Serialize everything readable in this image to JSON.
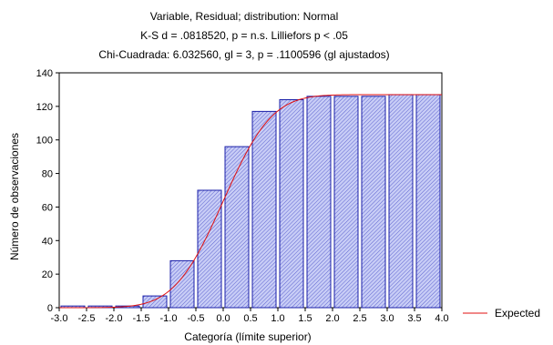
{
  "chart_data": {
    "type": "bar",
    "title": [
      "Variable, Residual; distribution: Normal",
      "K-S d = .0818520, p = n.s. Lilliefors p < .05",
      "Chi-Cuadrada: 6.032560, gl = 3, p = .1100596 (gl ajustados)"
    ],
    "xlabel": "Categoría (límite superior)",
    "ylabel": "Número de observaciones",
    "x_ticks": [
      "-3.0",
      "-2.5",
      "-2.0",
      "-1.5",
      "-1.0",
      "-0.5",
      "0.0",
      "0.5",
      "1.0",
      "1.5",
      "2.0",
      "2.5",
      "3.0",
      "3.5",
      "4.0"
    ],
    "x_tick_values": [
      -3.0,
      -2.5,
      -2.0,
      -1.5,
      -1.0,
      -0.5,
      0.0,
      0.5,
      1.0,
      1.5,
      2.0,
      2.5,
      3.0,
      3.5,
      4.0
    ],
    "y_ticks": [
      "0",
      "20",
      "40",
      "60",
      "80",
      "100",
      "120",
      "140"
    ],
    "xlim": [
      -3.0,
      4.0
    ],
    "ylim": [
      0,
      140
    ],
    "grid": false,
    "bar_upper_limits": [
      -2.5,
      -2.0,
      -1.5,
      -1.0,
      -0.5,
      0.0,
      0.5,
      1.0,
      1.5,
      2.0,
      2.5,
      3.0,
      3.5,
      4.0
    ],
    "bar_width": 0.5,
    "values": [
      1,
      1,
      1,
      7,
      28,
      70,
      96,
      117,
      124,
      126,
      126,
      126,
      127,
      127
    ],
    "expected_curve": {
      "name": "Expected",
      "distribution": "normal-cdf",
      "mean": 0.0,
      "sd": 0.7,
      "total": 127
    },
    "legend_placement": "right",
    "colors": {
      "bar_fill": "#c8cdf6",
      "bar_hatch": "#5258cc",
      "bar_stroke": "#1a1fa8",
      "curve": "#e01010",
      "axis": "#000000"
    }
  }
}
